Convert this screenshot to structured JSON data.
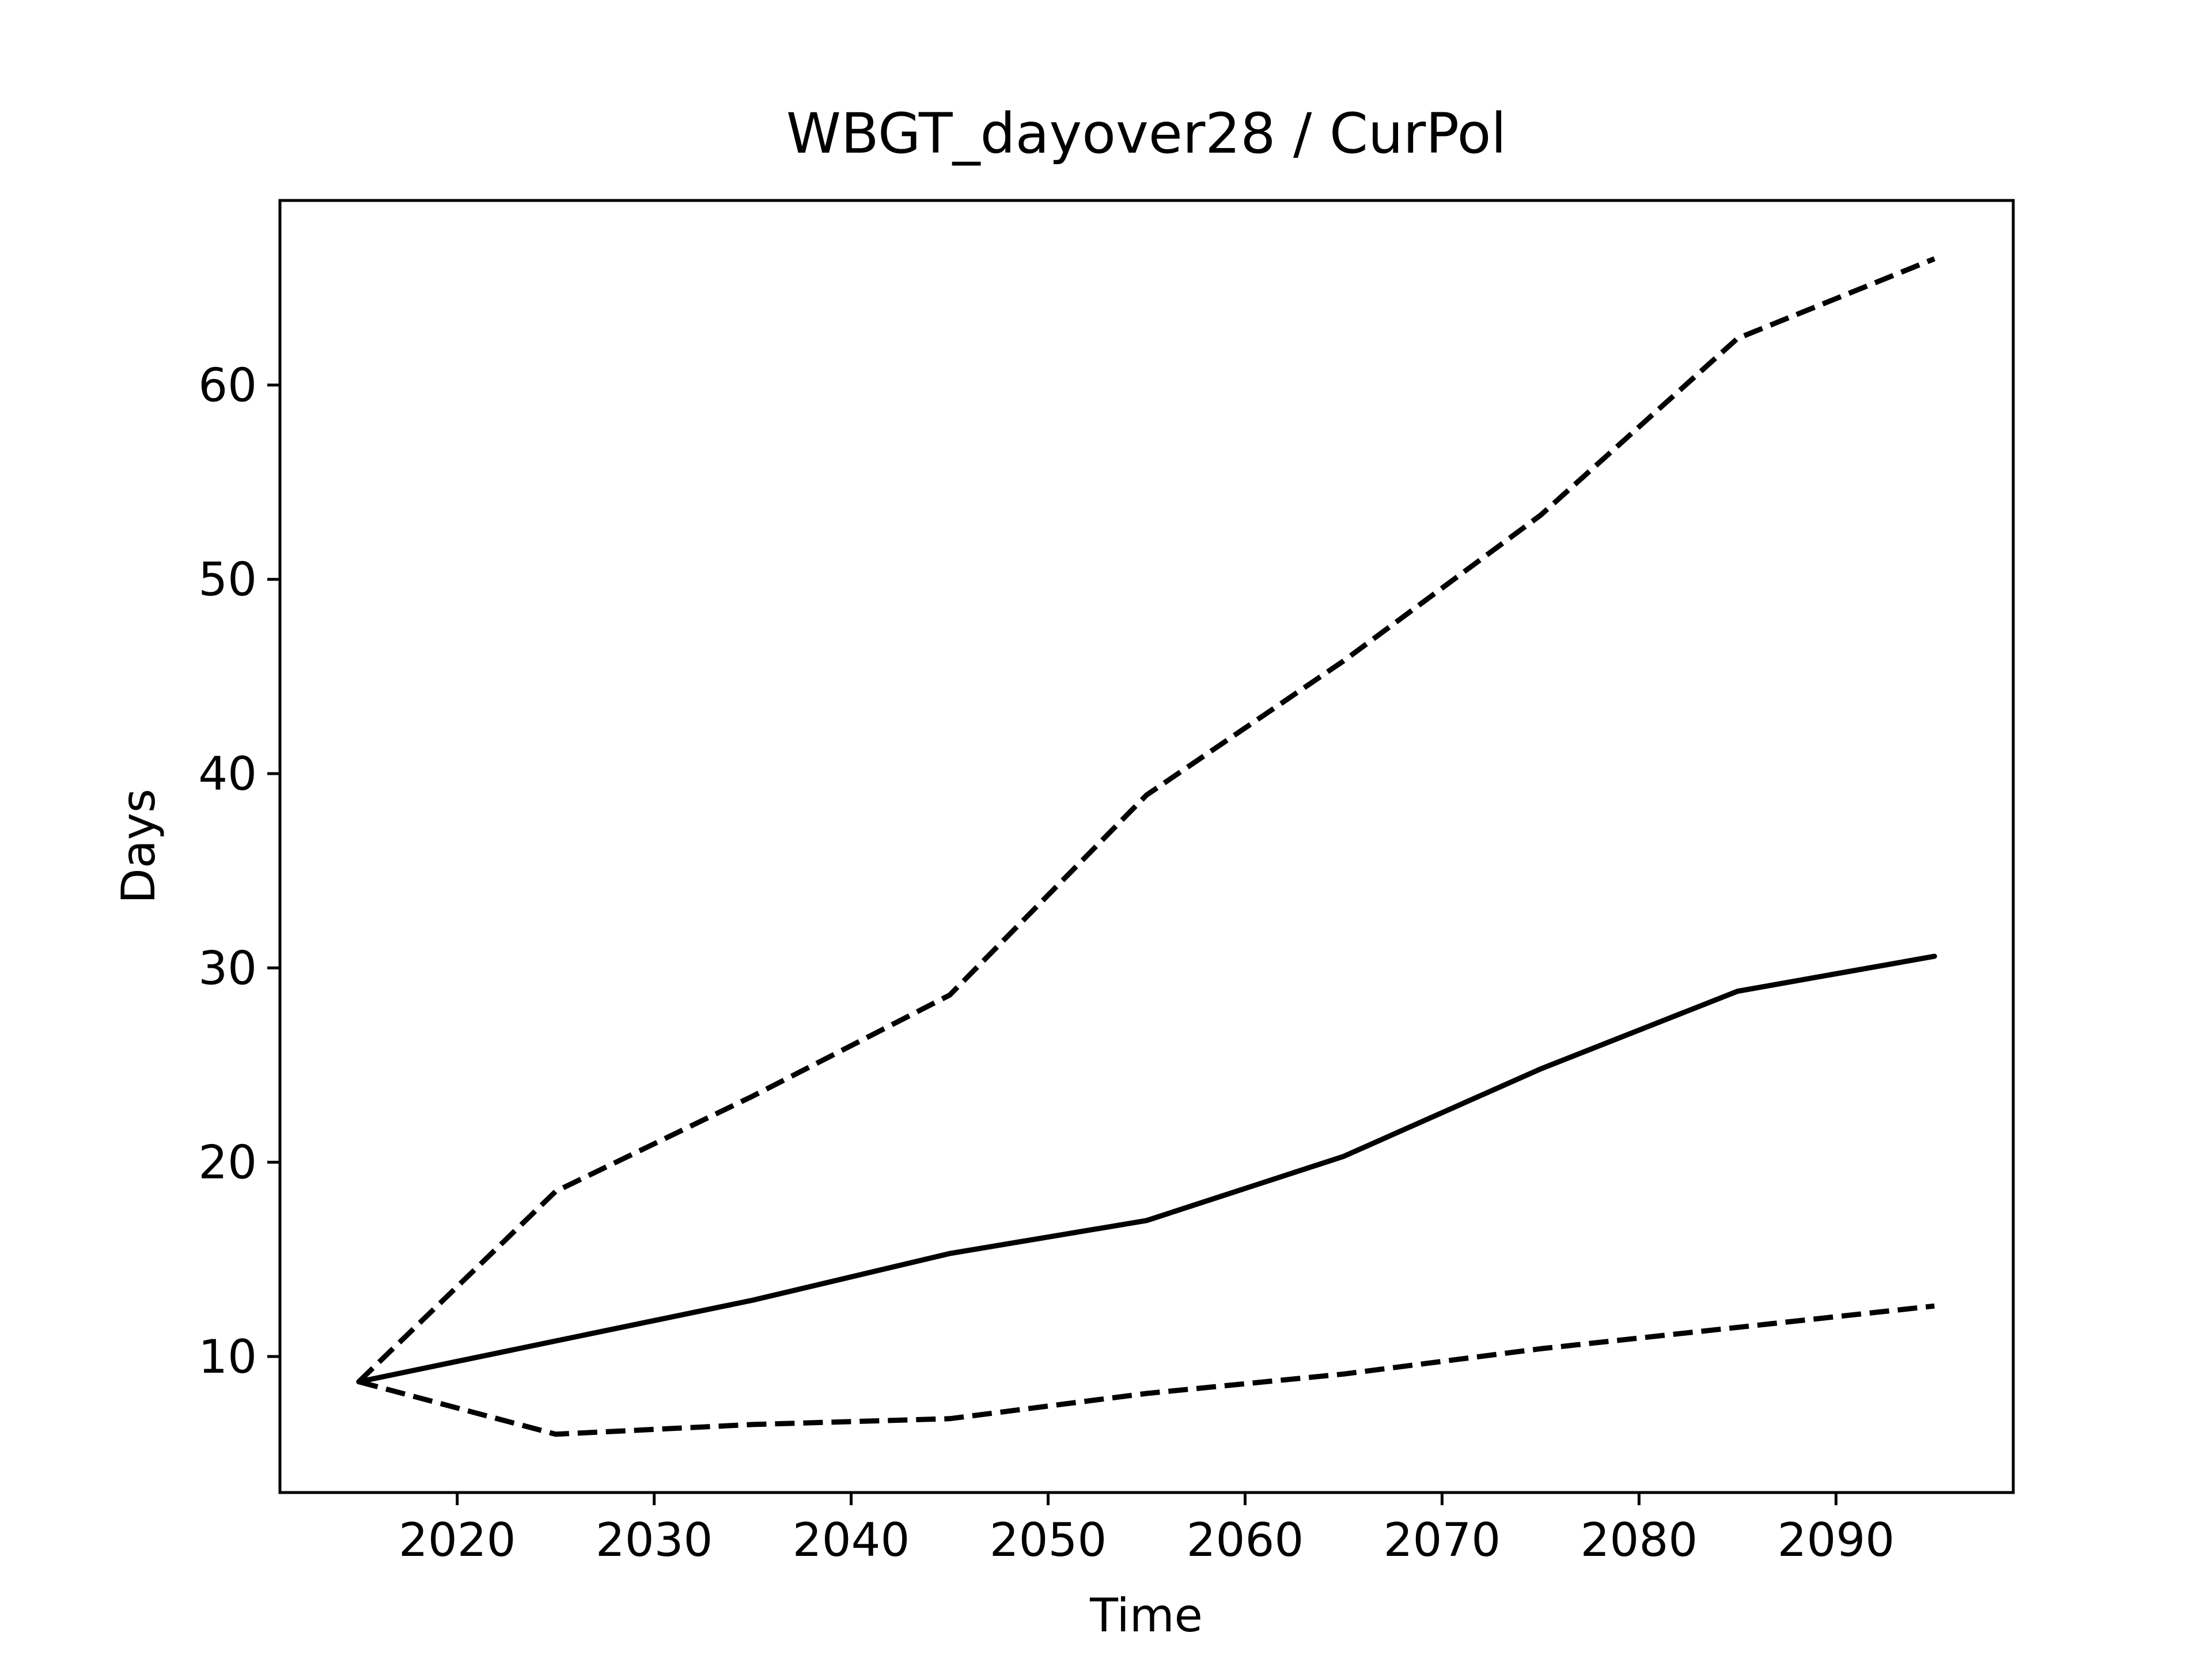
{
  "chart_data": {
    "type": "line",
    "title": "WBGT_dayover28 / CurPol",
    "xlabel": "Time",
    "ylabel": "Days",
    "x": [
      2015,
      2025,
      2035,
      2045,
      2055,
      2065,
      2075,
      2085,
      2095
    ],
    "xlim": [
      2011,
      2099
    ],
    "ylim": [
      3.0,
      69.5
    ],
    "xticks": [
      2020,
      2030,
      2040,
      2050,
      2060,
      2070,
      2080,
      2090
    ],
    "yticks": [
      10,
      20,
      30,
      40,
      50,
      60
    ],
    "grid": false,
    "series": [
      {
        "style": "solid",
        "color": "#000000",
        "values": [
          8.7,
          10.8,
          12.9,
          15.3,
          17.0,
          20.3,
          24.8,
          28.8,
          30.6
        ]
      },
      {
        "style": "dashed",
        "color": "#000000",
        "values": [
          8.7,
          18.5,
          23.4,
          28.6,
          38.9,
          45.8,
          53.3,
          62.4,
          66.5
        ]
      },
      {
        "style": "dashed",
        "color": "#000000",
        "values": [
          8.7,
          6.0,
          6.5,
          6.8,
          8.1,
          9.1,
          10.4,
          11.5,
          12.6
        ]
      }
    ]
  }
}
